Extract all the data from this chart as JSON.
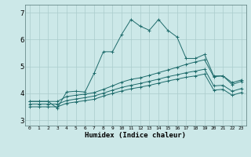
{
  "xlabel": "Humidex (Indice chaleur)",
  "xlim": [
    -0.5,
    23.5
  ],
  "ylim": [
    2.8,
    7.3
  ],
  "yticks": [
    3,
    4,
    5,
    6,
    7
  ],
  "xticks": [
    0,
    1,
    2,
    3,
    4,
    5,
    6,
    7,
    8,
    9,
    10,
    11,
    12,
    13,
    14,
    15,
    16,
    17,
    18,
    19,
    20,
    21,
    22,
    23
  ],
  "bg_color": "#cce8e8",
  "grid_color": "#aacccc",
  "line_color": "#1e6b6b",
  "series": [
    {
      "x": [
        0,
        1,
        2,
        3,
        4,
        5,
        6,
        7,
        8,
        9,
        10,
        11,
        12,
        13,
        14,
        15,
        16,
        17,
        18,
        19,
        20,
        21,
        22,
        23
      ],
      "y": [
        3.7,
        3.7,
        3.7,
        3.45,
        4.05,
        4.08,
        4.05,
        4.75,
        5.55,
        5.55,
        6.2,
        6.75,
        6.5,
        6.35,
        6.75,
        6.35,
        6.1,
        5.3,
        5.3,
        5.45,
        4.65,
        4.65,
        4.4,
        4.5
      ]
    },
    {
      "x": [
        0,
        1,
        2,
        3,
        4,
        5,
        6,
        7,
        8,
        9,
        10,
        11,
        12,
        13,
        14,
        15,
        16,
        17,
        18,
        19,
        20,
        21,
        22,
        23
      ],
      "y": [
        3.7,
        3.7,
        3.7,
        3.7,
        3.88,
        3.93,
        3.97,
        4.03,
        4.15,
        4.28,
        4.42,
        4.52,
        4.58,
        4.67,
        4.77,
        4.87,
        4.97,
        5.08,
        5.17,
        5.25,
        4.62,
        4.65,
        4.33,
        4.45
      ]
    },
    {
      "x": [
        0,
        1,
        2,
        3,
        4,
        5,
        6,
        7,
        8,
        9,
        10,
        11,
        12,
        13,
        14,
        15,
        16,
        17,
        18,
        19,
        20,
        21,
        22,
        23
      ],
      "y": [
        3.6,
        3.6,
        3.6,
        3.6,
        3.73,
        3.79,
        3.84,
        3.9,
        4.01,
        4.12,
        4.22,
        4.3,
        4.37,
        4.45,
        4.53,
        4.62,
        4.69,
        4.77,
        4.83,
        4.9,
        4.28,
        4.3,
        4.08,
        4.18
      ]
    },
    {
      "x": [
        0,
        1,
        2,
        3,
        4,
        5,
        6,
        7,
        8,
        9,
        10,
        11,
        12,
        13,
        14,
        15,
        16,
        17,
        18,
        19,
        20,
        21,
        22,
        23
      ],
      "y": [
        3.5,
        3.5,
        3.5,
        3.5,
        3.63,
        3.68,
        3.73,
        3.78,
        3.9,
        4.0,
        4.09,
        4.17,
        4.23,
        4.3,
        4.38,
        4.46,
        4.53,
        4.6,
        4.65,
        4.72,
        4.12,
        4.15,
        3.93,
        4.03
      ]
    }
  ]
}
